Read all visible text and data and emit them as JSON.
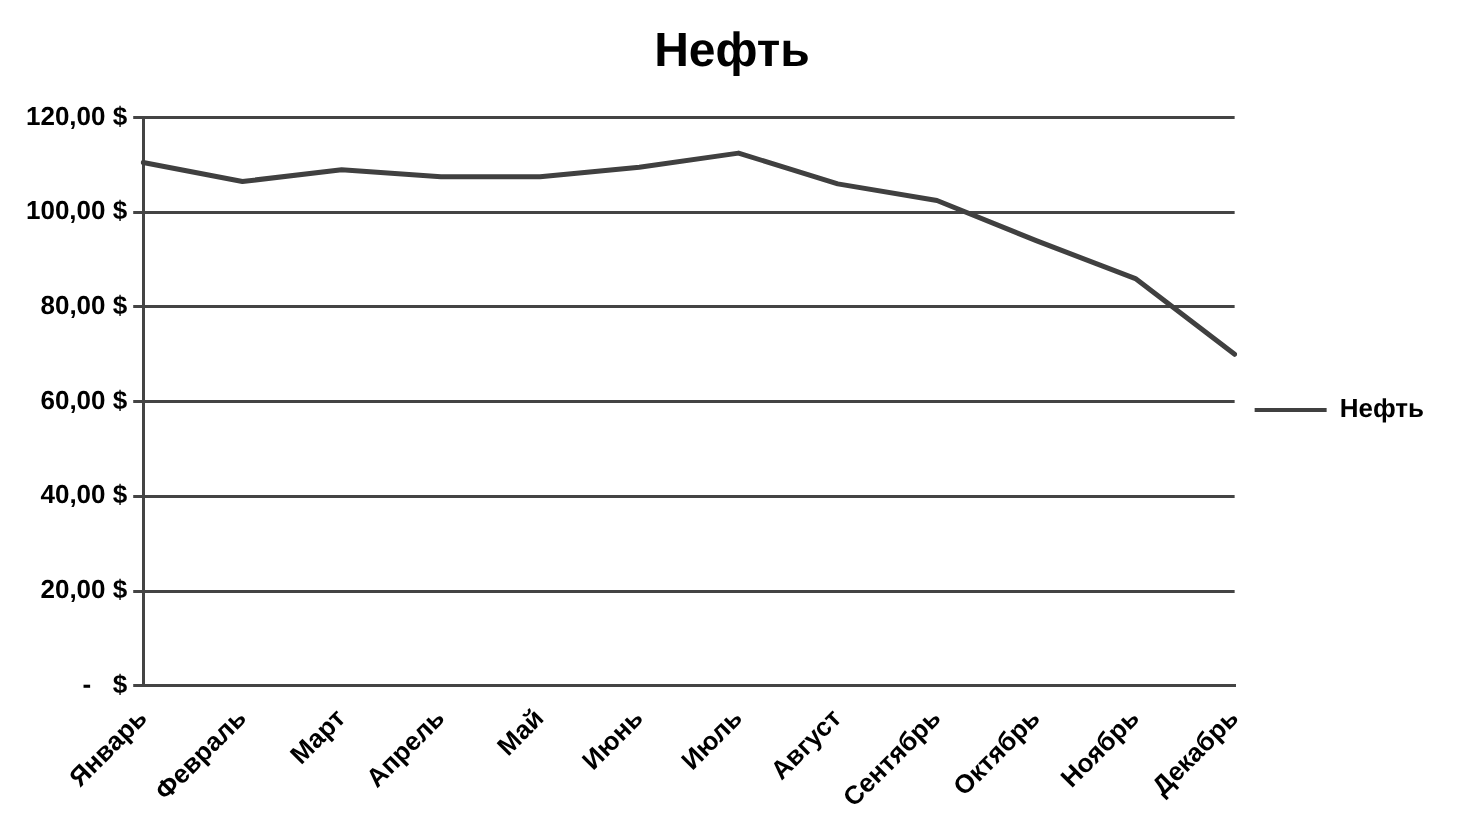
{
  "chart_data": {
    "type": "line",
    "title": "Нефть",
    "categories": [
      "Январь",
      "Февраль",
      "Март",
      "Апрель",
      "Май",
      "Июнь",
      "Июль",
      "Август",
      "Сентябрь",
      "Октябрь",
      "Ноябрь",
      "Декабрь"
    ],
    "series": [
      {
        "name": "Нефть",
        "color": "#404040",
        "values": [
          110.5,
          106.5,
          109,
          107.5,
          107.5,
          109.5,
          112.5,
          106,
          102.5,
          94,
          86,
          70
        ]
      }
    ],
    "ylim": [
      0,
      120
    ],
    "yticks": [
      {
        "value": 0,
        "label": "-   $"
      },
      {
        "value": 20,
        "label": "20,00 $"
      },
      {
        "value": 40,
        "label": "40,00 $"
      },
      {
        "value": 60,
        "label": "60,00 $"
      },
      {
        "value": 80,
        "label": "80,00 $"
      },
      {
        "value": 100,
        "label": "100,00 $"
      },
      {
        "value": 120,
        "label": "120,00 $"
      }
    ],
    "grid": "y",
    "legend": "right",
    "marker": "none",
    "line_style": "solid"
  }
}
